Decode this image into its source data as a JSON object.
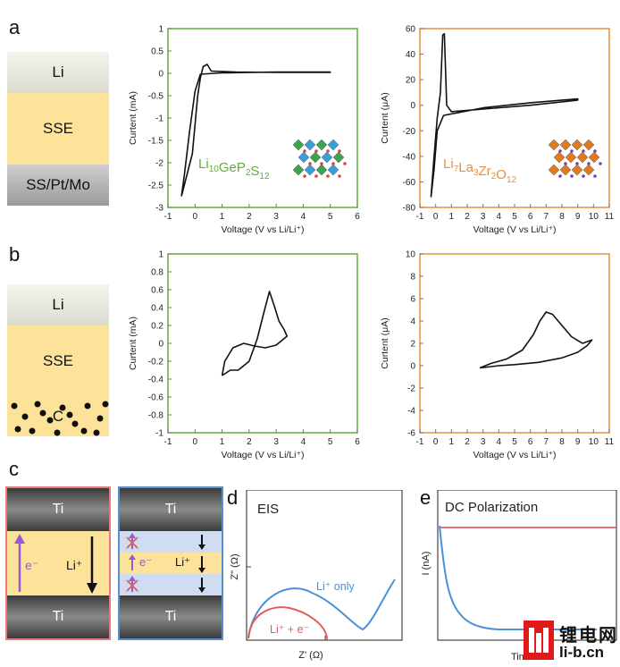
{
  "panels": {
    "a": "a",
    "b": "b",
    "c": "c",
    "d": "d",
    "e": "e"
  },
  "stack_a": {
    "top": "Li",
    "middle": "SSE",
    "bottom": "SS/Pt/Mo"
  },
  "stack_b": {
    "top": "Li",
    "middle": "SSE",
    "bottom": "C"
  },
  "colors": {
    "green": "#5fae3b",
    "orange": "#e8903a",
    "red": "#e25b5b",
    "blue": "#4a90d9",
    "purple": "#9b59d0",
    "sse": "#fde39a",
    "ti": "#555555"
  },
  "chart_data": [
    {
      "id": "a1",
      "type": "line",
      "title": "",
      "formula": {
        "base": [
          "Li",
          "GeP",
          "S"
        ],
        "subs": [
          "10",
          "2",
          "12"
        ]
      },
      "xlabel": "Voltage (V vs Li/Li⁺)",
      "ylabel": "Curtent (mA)",
      "xlim": [
        -1,
        6
      ],
      "ylim": [
        -3,
        1
      ],
      "xticks": [
        -1,
        0,
        1,
        2,
        3,
        4,
        5,
        6
      ],
      "yticks": [
        -3,
        -2.5,
        -2,
        -1.5,
        -1,
        -0.5,
        0,
        0.5,
        1
      ],
      "series": [
        {
          "name": "CV",
          "x": [
            -0.5,
            -0.1,
            0.1,
            0.2,
            0.3,
            0.45,
            0.6,
            1.5,
            3,
            5,
            5,
            3,
            1,
            0.2,
            0,
            -0.2,
            -0.4,
            -0.5
          ],
          "y": [
            -2.75,
            -1.8,
            -0.5,
            -0.1,
            0.15,
            0.2,
            0.05,
            0.03,
            0.02,
            0.02,
            0.03,
            0.03,
            0.01,
            -0.02,
            -0.4,
            -1.3,
            -2.3,
            -2.75
          ]
        }
      ]
    },
    {
      "id": "a2",
      "type": "line",
      "title": "",
      "formula": {
        "base": [
          "Li",
          "La",
          "Zr",
          "O"
        ],
        "subs": [
          "7",
          "3",
          "2",
          "12"
        ]
      },
      "xlabel": "Voltage (V vs Li/Li⁺)",
      "ylabel": "Curtent (μA)",
      "xlim": [
        -1,
        11
      ],
      "ylim": [
        -80,
        60
      ],
      "xticks": [
        -1,
        0,
        1,
        2,
        3,
        4,
        5,
        6,
        7,
        8,
        9,
        10,
        11
      ],
      "yticks": [
        -80,
        -60,
        -40,
        -20,
        0,
        20,
        40,
        60
      ],
      "series": [
        {
          "name": "CV",
          "x": [
            -0.3,
            -0.1,
            0.1,
            0.3,
            0.45,
            0.55,
            0.7,
            1.0,
            3,
            6,
            9,
            9,
            6,
            3,
            0.5,
            0.1,
            -0.1,
            -0.3
          ],
          "y": [
            -72,
            -40,
            -10,
            10,
            55,
            56,
            0,
            -5,
            -3,
            0,
            4,
            5,
            2,
            -2,
            -8,
            -20,
            -50,
            -72
          ]
        }
      ]
    },
    {
      "id": "b1",
      "type": "line",
      "title": "",
      "xlabel": "Voltage (V vs Li/Li⁺)",
      "ylabel": "Curtent (mA)",
      "xlim": [
        -1,
        6
      ],
      "ylim": [
        -1,
        1
      ],
      "xticks": [
        -1,
        0,
        1,
        2,
        3,
        4,
        5,
        6
      ],
      "yticks": [
        -1,
        -0.8,
        -0.6,
        -0.4,
        -0.2,
        0,
        0.2,
        0.4,
        0.6,
        0.8,
        1
      ],
      "series": [
        {
          "name": "CV",
          "x": [
            1.0,
            1.3,
            1.6,
            2.0,
            2.3,
            2.55,
            2.75,
            2.95,
            3.1,
            3.3,
            3.4,
            3.0,
            2.6,
            2.2,
            1.8,
            1.4,
            1.1,
            1.0
          ],
          "y": [
            -0.36,
            -0.3,
            -0.3,
            -0.2,
            0.05,
            0.35,
            0.58,
            0.4,
            0.25,
            0.15,
            0.08,
            -0.02,
            -0.05,
            -0.03,
            0.0,
            -0.05,
            -0.2,
            -0.36
          ]
        }
      ]
    },
    {
      "id": "b2",
      "type": "line",
      "title": "",
      "xlabel": "Voltage (V vs Li/Li⁺)",
      "ylabel": "Curtent (μA)",
      "xlim": [
        -1,
        11
      ],
      "ylim": [
        -6,
        10
      ],
      "xticks": [
        -1,
        0,
        1,
        2,
        3,
        4,
        5,
        6,
        7,
        8,
        9,
        10,
        11
      ],
      "yticks": [
        -6,
        -4,
        -2,
        0,
        2,
        4,
        6,
        8,
        10
      ],
      "series": [
        {
          "name": "CV",
          "x": [
            2.8,
            3.5,
            4.5,
            5.5,
            6.2,
            6.6,
            7.0,
            7.4,
            8.0,
            8.6,
            9.3,
            9.9,
            9.6,
            9.0,
            8.0,
            6.5,
            5.0,
            4.0,
            2.8
          ],
          "y": [
            -0.2,
            0.2,
            0.6,
            1.4,
            2.8,
            4.0,
            4.8,
            4.6,
            3.6,
            2.6,
            2.0,
            2.3,
            1.8,
            1.2,
            0.7,
            0.3,
            0.1,
            0.0,
            -0.2
          ]
        }
      ]
    },
    {
      "id": "d",
      "type": "line",
      "title": "EIS",
      "xlabel": "Z' (Ω)",
      "ylabel": "Z\" (Ω)",
      "series": [
        {
          "name": "Li⁺ only",
          "color": "#4a90d9"
        },
        {
          "name": "Li⁺ + e⁻",
          "color": "#e25b5b"
        }
      ]
    },
    {
      "id": "e",
      "type": "line",
      "title": "DC Polarization",
      "xlabel": "Time",
      "ylabel": "I (nA)",
      "series": [
        {
          "name": "red",
          "color": "#e25b5b"
        },
        {
          "name": "blue",
          "color": "#4a90d9"
        }
      ]
    }
  ],
  "panel_c": {
    "ti": "Ti",
    "electron": "e⁻",
    "lithium": "Li⁺"
  },
  "watermark": {
    "cn": "锂电网",
    "url": "li-b.cn"
  }
}
